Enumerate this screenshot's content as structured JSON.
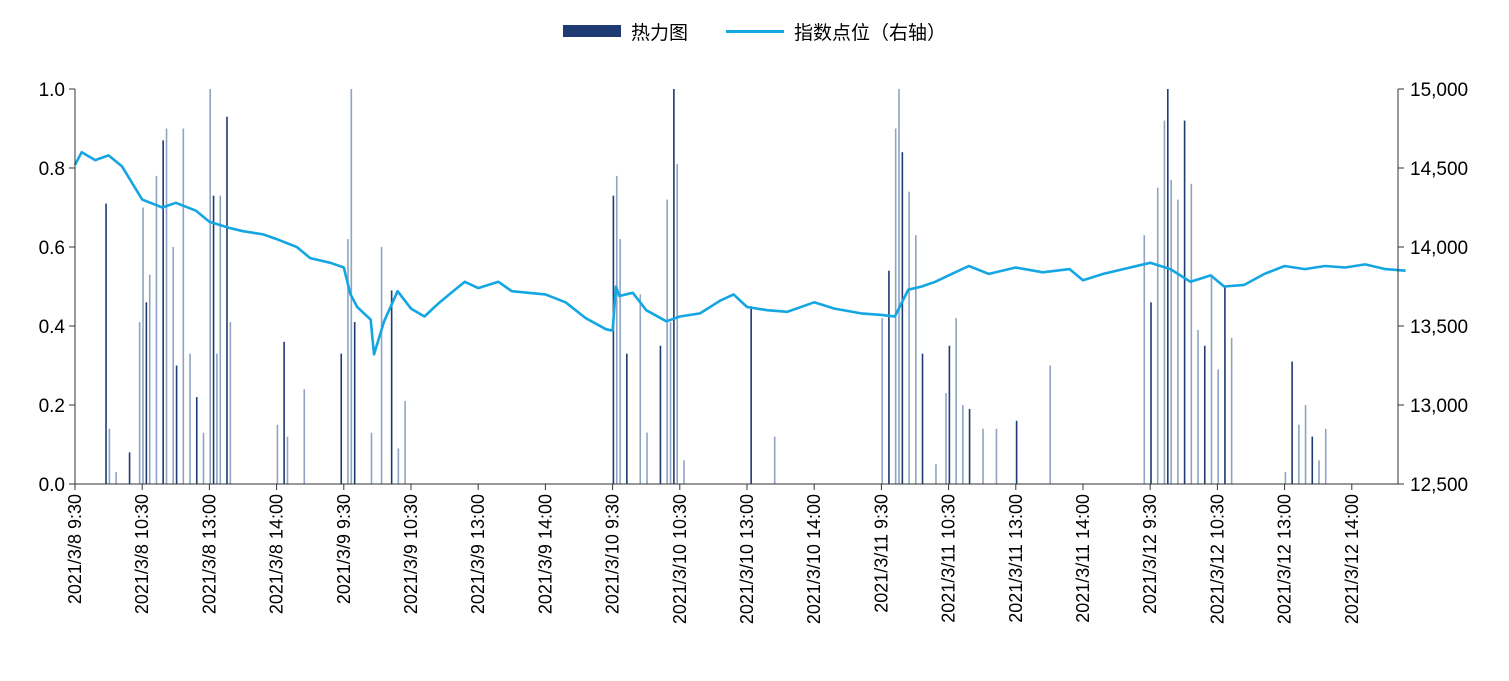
{
  "chart_data": {
    "type": "bar+line",
    "legend": [
      {
        "name": "热力图",
        "kind": "bar",
        "color": "#1f3b73"
      },
      {
        "name": "指数点位（右轴）",
        "kind": "line",
        "color": "#13a6e3"
      }
    ],
    "left_axis": {
      "min": 0,
      "max": 1,
      "ticks": [
        "0.0",
        "0.2",
        "0.4",
        "0.6",
        "0.8",
        "1.0"
      ],
      "tick_values": [
        0,
        0.2,
        0.4,
        0.6,
        0.8,
        1.0
      ]
    },
    "right_axis": {
      "min": 12500,
      "max": 15000,
      "ticks": [
        "12,500",
        "13,000",
        "13,500",
        "14,000",
        "14,500",
        "15,000"
      ],
      "tick_values": [
        12500,
        13000,
        13500,
        14000,
        14500,
        15000
      ]
    },
    "x_tick_labels": [
      "2021/3/8 9:30",
      "2021/3/8 10:30",
      "2021/3/8 13:00",
      "2021/3/8 14:00",
      "2021/3/9 9:30",
      "2021/3/9 10:30",
      "2021/3/9 13:00",
      "2021/3/9 14:00",
      "2021/3/10 9:30",
      "2021/3/10 10:30",
      "2021/3/10 13:00",
      "2021/3/10 14:00",
      "2021/3/11 9:30",
      "2021/3/11 10:30",
      "2021/3/11 13:00",
      "2021/3/11 14:00",
      "2021/3/12 9:30",
      "2021/3/12 10:30",
      "2021/3/12 13:00",
      "2021/3/12 14:00"
    ],
    "index_line": {
      "name": "指数点位（右轴）",
      "points_by_tick_index": [
        [
          0,
          14520
        ],
        [
          0.1,
          14600
        ],
        [
          0.3,
          14550
        ],
        [
          0.5,
          14580
        ],
        [
          0.7,
          14510
        ],
        [
          1.0,
          14300
        ],
        [
          1.3,
          14250
        ],
        [
          1.5,
          14280
        ],
        [
          1.8,
          14230
        ],
        [
          2.0,
          14160
        ],
        [
          2.3,
          14120
        ],
        [
          2.5,
          14100
        ],
        [
          2.8,
          14080
        ],
        [
          3.0,
          14050
        ],
        [
          3.3,
          14000
        ],
        [
          3.5,
          13930
        ],
        [
          3.8,
          13900
        ],
        [
          4.0,
          13870
        ],
        [
          4.1,
          13700
        ],
        [
          4.2,
          13620
        ],
        [
          4.4,
          13540
        ],
        [
          4.45,
          13320
        ],
        [
          4.6,
          13530
        ],
        [
          4.8,
          13720
        ],
        [
          5.0,
          13610
        ],
        [
          5.2,
          13560
        ],
        [
          5.4,
          13640
        ],
        [
          5.6,
          13710
        ],
        [
          5.8,
          13780
        ],
        [
          6.0,
          13740
        ],
        [
          6.3,
          13780
        ],
        [
          6.5,
          13720
        ],
        [
          7.0,
          13700
        ],
        [
          7.3,
          13650
        ],
        [
          7.6,
          13550
        ],
        [
          7.9,
          13480
        ],
        [
          8.0,
          13470
        ],
        [
          8.05,
          13750
        ],
        [
          8.1,
          13690
        ],
        [
          8.3,
          13710
        ],
        [
          8.5,
          13600
        ],
        [
          8.8,
          13530
        ],
        [
          9.0,
          13560
        ],
        [
          9.3,
          13580
        ],
        [
          9.6,
          13660
        ],
        [
          9.8,
          13700
        ],
        [
          10.0,
          13620
        ],
        [
          10.3,
          13600
        ],
        [
          10.6,
          13590
        ],
        [
          11.0,
          13650
        ],
        [
          11.3,
          13610
        ],
        [
          11.7,
          13580
        ],
        [
          12.0,
          13570
        ],
        [
          12.2,
          13560
        ],
        [
          12.4,
          13730
        ],
        [
          12.6,
          13750
        ],
        [
          12.8,
          13780
        ],
        [
          13.0,
          13820
        ],
        [
          13.3,
          13880
        ],
        [
          13.6,
          13830
        ],
        [
          14.0,
          13870
        ],
        [
          14.4,
          13840
        ],
        [
          14.8,
          13860
        ],
        [
          15.0,
          13790
        ],
        [
          15.3,
          13830
        ],
        [
          15.6,
          13860
        ],
        [
          16.0,
          13900
        ],
        [
          16.3,
          13860
        ],
        [
          16.6,
          13780
        ],
        [
          16.9,
          13820
        ],
        [
          17.1,
          13750
        ],
        [
          17.4,
          13760
        ],
        [
          17.7,
          13830
        ],
        [
          18.0,
          13880
        ],
        [
          18.3,
          13860
        ],
        [
          18.6,
          13880
        ],
        [
          18.9,
          13870
        ],
        [
          19.2,
          13890
        ],
        [
          19.5,
          13860
        ],
        [
          19.8,
          13850
        ]
      ]
    },
    "heat_bars": {
      "name": "热力图",
      "bars_by_tick_index": [
        [
          0.45,
          0.71
        ],
        [
          0.5,
          0.14
        ],
        [
          0.6,
          0.03
        ],
        [
          0.8,
          0.08
        ],
        [
          0.95,
          0.41
        ],
        [
          1.0,
          0.7
        ],
        [
          1.05,
          0.46
        ],
        [
          1.1,
          0.53
        ],
        [
          1.2,
          0.78
        ],
        [
          1.3,
          0.87
        ],
        [
          1.35,
          0.9
        ],
        [
          1.45,
          0.6
        ],
        [
          1.5,
          0.3
        ],
        [
          1.6,
          0.9
        ],
        [
          1.7,
          0.33
        ],
        [
          1.8,
          0.22
        ],
        [
          1.9,
          0.13
        ],
        [
          2.0,
          1.0
        ],
        [
          2.05,
          0.73
        ],
        [
          2.1,
          0.33
        ],
        [
          2.15,
          0.73
        ],
        [
          2.25,
          0.93
        ],
        [
          2.3,
          0.41
        ],
        [
          3.0,
          0.15
        ],
        [
          3.1,
          0.36
        ],
        [
          3.15,
          0.12
        ],
        [
          3.4,
          0.24
        ],
        [
          3.95,
          0.33
        ],
        [
          4.05,
          0.62
        ],
        [
          4.1,
          1.0
        ],
        [
          4.15,
          0.41
        ],
        [
          4.4,
          0.13
        ],
        [
          4.55,
          0.6
        ],
        [
          4.7,
          0.49
        ],
        [
          4.8,
          0.09
        ],
        [
          4.9,
          0.21
        ],
        [
          8.0,
          0.73
        ],
        [
          8.05,
          0.78
        ],
        [
          8.1,
          0.62
        ],
        [
          8.2,
          0.33
        ],
        [
          8.4,
          0.48
        ],
        [
          8.5,
          0.13
        ],
        [
          8.7,
          0.35
        ],
        [
          8.8,
          0.72
        ],
        [
          8.85,
          0.41
        ],
        [
          8.9,
          1.0
        ],
        [
          8.95,
          0.81
        ],
        [
          9.05,
          0.06
        ],
        [
          10.05,
          0.45
        ],
        [
          10.4,
          0.12
        ],
        [
          12.0,
          0.42
        ],
        [
          12.1,
          0.54
        ],
        [
          12.2,
          0.9
        ],
        [
          12.25,
          1.0
        ],
        [
          12.3,
          0.84
        ],
        [
          12.4,
          0.74
        ],
        [
          12.5,
          0.63
        ],
        [
          12.6,
          0.33
        ],
        [
          12.8,
          0.05
        ],
        [
          12.95,
          0.23
        ],
        [
          13.0,
          0.35
        ],
        [
          13.1,
          0.42
        ],
        [
          13.2,
          0.2
        ],
        [
          13.3,
          0.19
        ],
        [
          13.5,
          0.14
        ],
        [
          13.7,
          0.14
        ],
        [
          14.0,
          0.16
        ],
        [
          14.5,
          0.3
        ],
        [
          15.9,
          0.63
        ],
        [
          16.0,
          0.46
        ],
        [
          16.1,
          0.75
        ],
        [
          16.2,
          0.92
        ],
        [
          16.25,
          1.0
        ],
        [
          16.3,
          0.77
        ],
        [
          16.4,
          0.72
        ],
        [
          16.5,
          0.92
        ],
        [
          16.6,
          0.76
        ],
        [
          16.7,
          0.39
        ],
        [
          16.8,
          0.35
        ],
        [
          16.9,
          0.53
        ],
        [
          17.0,
          0.29
        ],
        [
          17.1,
          0.5
        ],
        [
          17.2,
          0.37
        ],
        [
          18.0,
          0.03
        ],
        [
          18.1,
          0.31
        ],
        [
          18.2,
          0.15
        ],
        [
          18.3,
          0.2
        ],
        [
          18.4,
          0.12
        ],
        [
          18.5,
          0.06
        ],
        [
          18.6,
          0.14
        ]
      ]
    }
  }
}
